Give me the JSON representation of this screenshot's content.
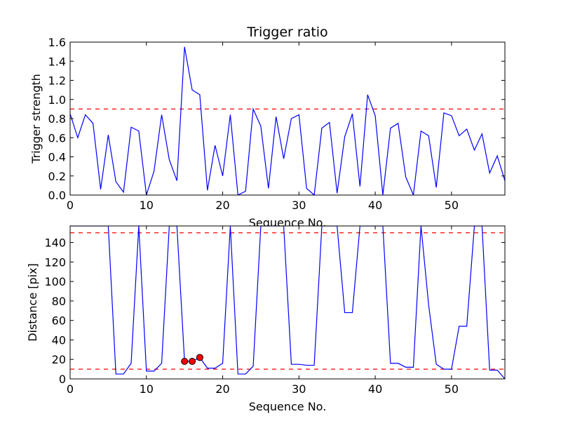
{
  "chart_data": [
    {
      "type": "line",
      "title": "Trigger ratio",
      "xlabel": "Sequence No.",
      "ylabel": "Trigger strength",
      "xlim": [
        0,
        57
      ],
      "ylim": [
        0,
        1.6
      ],
      "xticks": [
        0,
        10,
        20,
        30,
        40,
        50
      ],
      "yticks": [
        0.0,
        0.2,
        0.4,
        0.6,
        0.8,
        1.0,
        1.2,
        1.4,
        1.6
      ],
      "ytick_labels": [
        "0.0",
        "0.2",
        "0.4",
        "0.6",
        "0.8",
        "1.0",
        "1.2",
        "1.4",
        "1.6"
      ],
      "line_color": "#0000ff",
      "threshold": 0.9,
      "threshold_color": "#ff0000",
      "series": [
        {
          "x": [
            0,
            1,
            2,
            3,
            4,
            5,
            6,
            7,
            8,
            9,
            10,
            11,
            12,
            13,
            14,
            15,
            16,
            17,
            18,
            19,
            20,
            21,
            22,
            23,
            24,
            25,
            26,
            27,
            28,
            29,
            30,
            31,
            32,
            33,
            34,
            35,
            36,
            37,
            38,
            39,
            40,
            41,
            42,
            43,
            44,
            45,
            46,
            47,
            48,
            49,
            50,
            51,
            52,
            53,
            54,
            55,
            56,
            57
          ],
          "values": [
            0.85,
            0.6,
            0.84,
            0.75,
            0.06,
            0.63,
            0.14,
            0.03,
            0.71,
            0.67,
            0.0,
            0.25,
            0.84,
            0.37,
            0.15,
            1.55,
            1.1,
            1.05,
            0.05,
            0.52,
            0.2,
            0.84,
            0.0,
            0.04,
            0.9,
            0.72,
            0.07,
            0.82,
            0.38,
            0.8,
            0.84,
            0.07,
            0.0,
            0.7,
            0.76,
            0.02,
            0.61,
            0.85,
            0.09,
            1.05,
            0.83,
            0.0,
            0.7,
            0.75,
            0.19,
            0.0,
            0.67,
            0.62,
            0.08,
            0.86,
            0.83,
            0.62,
            0.69,
            0.47,
            0.64,
            0.23,
            0.41,
            0.15
          ]
        }
      ]
    },
    {
      "type": "line",
      "title": "",
      "xlabel": "Sequence No.",
      "ylabel": "Distance [pix]",
      "xlim": [
        0,
        57
      ],
      "ylim": [
        0,
        157
      ],
      "xticks": [
        0,
        10,
        20,
        30,
        40,
        50
      ],
      "yticks": [
        0,
        20,
        40,
        60,
        80,
        100,
        120,
        140
      ],
      "ytick_labels": [
        "0",
        "20",
        "40",
        "60",
        "80",
        "100",
        "120",
        "140"
      ],
      "line_color": "#0000ff",
      "thresholds": [
        150,
        10
      ],
      "threshold_color": "#ff0000",
      "marker_color": "#ff0000",
      "series": [
        {
          "x": [
            0,
            1,
            2,
            3,
            4,
            5,
            6,
            7,
            8,
            9,
            10,
            11,
            12,
            13,
            14,
            15,
            16,
            17,
            18,
            19,
            20,
            21,
            22,
            23,
            24,
            25,
            26,
            27,
            28,
            29,
            30,
            31,
            32,
            33,
            34,
            35,
            36,
            37,
            38,
            39,
            40,
            41,
            42,
            43,
            44,
            45,
            46,
            47,
            48,
            49,
            50,
            51,
            52,
            53,
            54,
            55,
            56,
            57
          ],
          "values": [
            157,
            157,
            157,
            157,
            157,
            157,
            5,
            5,
            16,
            157,
            8,
            8,
            16,
            157,
            157,
            18,
            18,
            22,
            11,
            11,
            16,
            157,
            5,
            5,
            13,
            157,
            157,
            157,
            157,
            15,
            15,
            14,
            14,
            157,
            157,
            157,
            68,
            68,
            157,
            157,
            157,
            157,
            16,
            16,
            12,
            12,
            157,
            76,
            15,
            10,
            10,
            54,
            54,
            157,
            157,
            9,
            9,
            0
          ]
        }
      ],
      "markers": {
        "x": [
          15,
          16,
          17
        ],
        "values": [
          18,
          18,
          22
        ]
      }
    }
  ]
}
